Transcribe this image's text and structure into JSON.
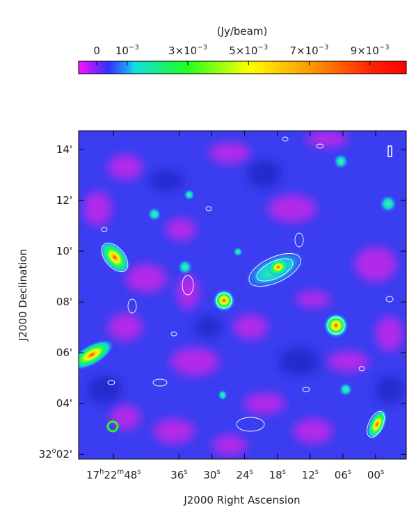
{
  "figure": {
    "colorbar": {
      "label": "(Jy/beam)",
      "lim": [
        -0.0006,
        0.0102
      ],
      "ticks": [
        {
          "value": 0,
          "label": [
            "0"
          ]
        },
        {
          "value": 0.001,
          "label": [
            "10",
            "−3"
          ]
        },
        {
          "value": 0.003,
          "label": [
            "3×10",
            "−3"
          ]
        },
        {
          "value": 0.005,
          "label": [
            "5×10",
            "−3"
          ]
        },
        {
          "value": 0.007,
          "label": [
            "7×10",
            "−3"
          ]
        },
        {
          "value": 0.009,
          "label": [
            "9×10",
            "−3"
          ]
        }
      ]
    },
    "x_axis": {
      "label": "J2000 Right Ascension",
      "lim": [
        1374.4,
        1314.4
      ],
      "ticks": [
        {
          "value": 1368,
          "label": [
            "17",
            "h",
            "22",
            "m",
            "48",
            "s"
          ]
        },
        {
          "value": 1356,
          "label": [
            "36",
            "s"
          ]
        },
        {
          "value": 1350,
          "label": [
            "30",
            "s"
          ]
        },
        {
          "value": 1344,
          "label": [
            "24",
            "s"
          ]
        },
        {
          "value": 1338,
          "label": [
            "18",
            "s"
          ]
        },
        {
          "value": 1332,
          "label": [
            "12",
            "s"
          ]
        },
        {
          "value": 1326,
          "label": [
            "06",
            "s"
          ]
        },
        {
          "value": 1320,
          "label": [
            "00",
            "s"
          ]
        }
      ]
    },
    "y_axis": {
      "label": "J2000 Declination",
      "lim": [
        32.0302,
        32.2457
      ],
      "ticks": [
        {
          "value": 32.0333,
          "label": [
            "32",
            "o",
            "02'"
          ]
        },
        {
          "value": 32.0667,
          "label": [
            "04'"
          ]
        },
        {
          "value": 32.1,
          "label": [
            "06'"
          ]
        },
        {
          "value": 32.1333,
          "label": [
            "08'"
          ]
        },
        {
          "value": 32.1667,
          "label": [
            "10'"
          ]
        },
        {
          "value": 32.2,
          "label": [
            "12'"
          ]
        },
        {
          "value": 32.2333,
          "label": [
            "14'"
          ]
        }
      ]
    }
  }
}
